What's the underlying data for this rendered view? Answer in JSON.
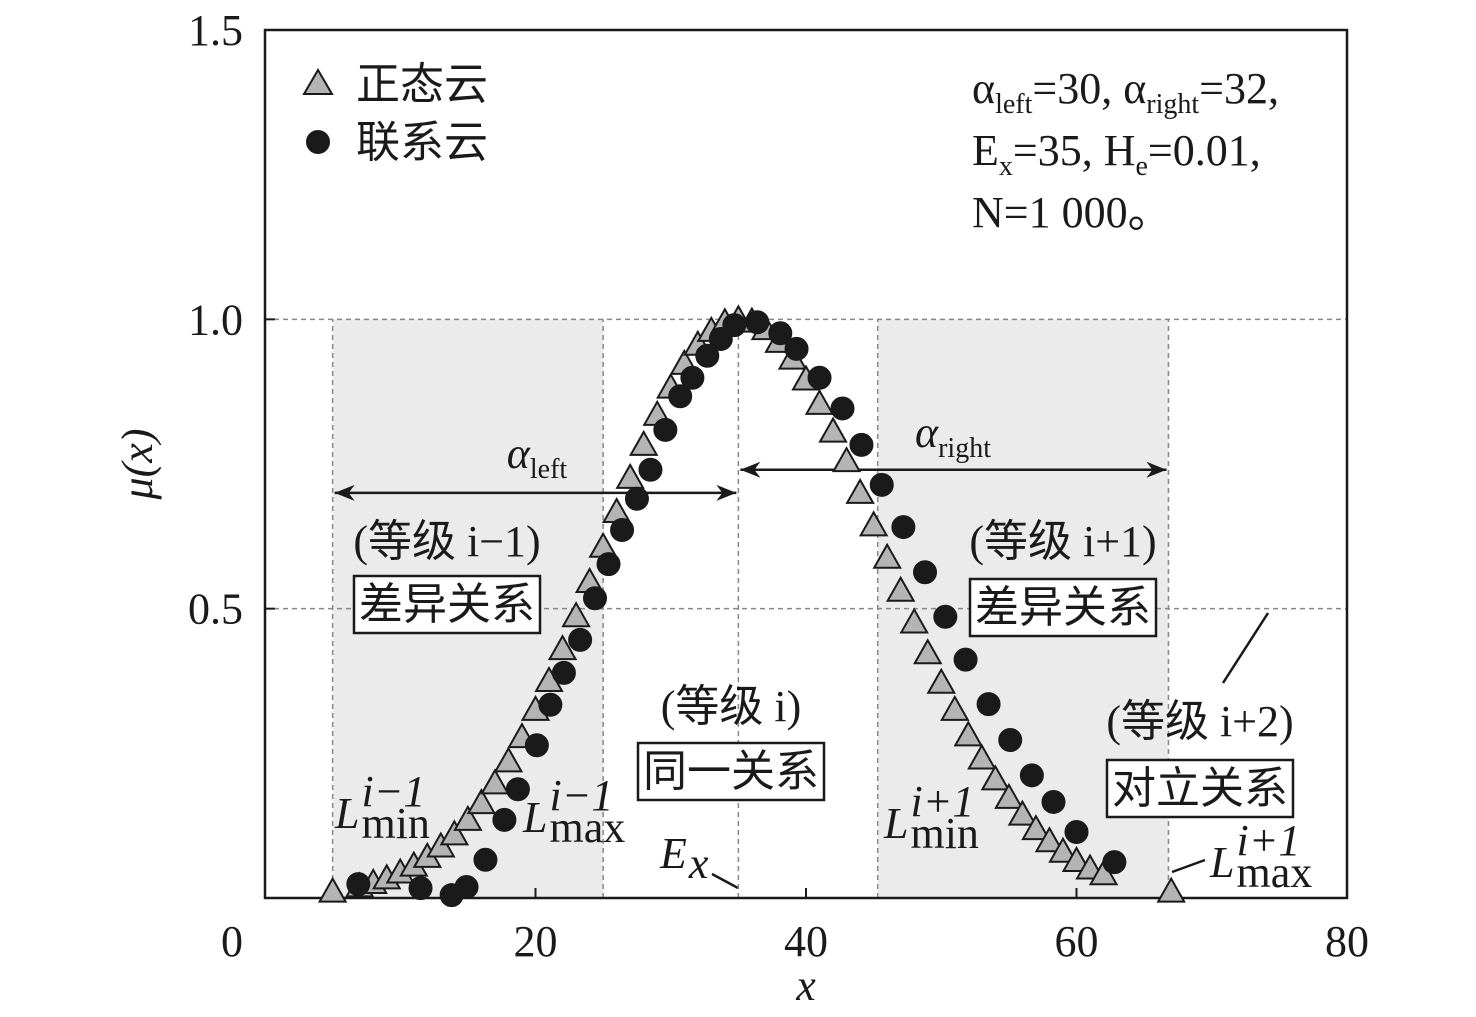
{
  "chart_data": {
    "type": "scatter",
    "x_label": "x",
    "y_label": "μ(x)",
    "xlim": [
      0,
      80
    ],
    "ylim": [
      0,
      1.5
    ],
    "xticks": [
      0,
      20,
      40,
      60,
      80
    ],
    "yticks": [
      0.5,
      {
        "value": 1,
        "label": "1.0"
      },
      1.5
    ],
    "grid": true,
    "legend": "upper left",
    "series": [
      {
        "name": "正态云",
        "marker": "triangle",
        "color": "#b4b4b4",
        "x": [
          5,
          7,
          8,
          9,
          10,
          11,
          12,
          13,
          14,
          15,
          16,
          17,
          18,
          19,
          20,
          21,
          22,
          23,
          24,
          25,
          26,
          27,
          28,
          29,
          30,
          31,
          32,
          33,
          34,
          35,
          36,
          37,
          38,
          39,
          40,
          41,
          42,
          43,
          44,
          45,
          46,
          47,
          48,
          49,
          50,
          51,
          52,
          53,
          54,
          55,
          56,
          57,
          58,
          59,
          60,
          61,
          62,
          67
        ],
        "values": [
          0.011,
          0.02,
          0.026,
          0.034,
          0.044,
          0.056,
          0.071,
          0.089,
          0.11,
          0.135,
          0.164,
          0.198,
          0.236,
          0.278,
          0.325,
          0.375,
          0.43,
          0.487,
          0.546,
          0.607,
          0.667,
          0.726,
          0.783,
          0.835,
          0.882,
          0.923,
          0.956,
          0.98,
          0.995,
          1.0,
          0.996,
          0.983,
          0.961,
          0.932,
          0.896,
          0.854,
          0.806,
          0.755,
          0.7,
          0.644,
          0.588,
          0.531,
          0.476,
          0.423,
          0.372,
          0.325,
          0.281,
          0.241,
          0.205,
          0.173,
          0.144,
          0.119,
          0.098,
          0.08,
          0.064,
          0.051,
          0.041,
          0.011
        ]
      },
      {
        "name": "联系云",
        "marker": "circle",
        "color": "#1a1a1a",
        "x": [
          6.9,
          11.5,
          13.8,
          14.9,
          16.3,
          17.7,
          18.7,
          20.1,
          21.1,
          22.1,
          23.3,
          24.4,
          25.4,
          26.4,
          27.5,
          28.5,
          29.6,
          30.7,
          31.6,
          32.7,
          33.7,
          34.7,
          36.4,
          38.1,
          39.3,
          41.0,
          42.7,
          44.1,
          45.6,
          47.2,
          48.8,
          50.3,
          51.8,
          53.5,
          55.1,
          56.7,
          58.3,
          60.0,
          62.8
        ],
        "values": [
          0.024,
          0.017,
          0.005,
          0.019,
          0.066,
          0.135,
          0.188,
          0.264,
          0.334,
          0.389,
          0.446,
          0.518,
          0.577,
          0.636,
          0.69,
          0.74,
          0.809,
          0.867,
          0.899,
          0.937,
          0.966,
          0.99,
          0.995,
          0.976,
          0.949,
          0.899,
          0.846,
          0.783,
          0.714,
          0.641,
          0.563,
          0.486,
          0.412,
          0.335,
          0.273,
          0.212,
          0.166,
          0.114,
          0.062
        ]
      }
    ],
    "shaded_ranges": [
      [
        5,
        25
      ],
      [
        45.3,
        66.8
      ]
    ],
    "vlines": [
      5,
      25,
      35,
      45.3,
      66.8
    ],
    "vline_top": 1,
    "arrows": [
      {
        "from": 5,
        "to": 35,
        "y": 0.7,
        "label": {
          "base": "α",
          "sub": "left"
        }
      },
      {
        "from": 35,
        "to": 66.8,
        "y": 0.74,
        "label": {
          "base": "α",
          "sub": "right"
        }
      }
    ],
    "bound_labels": [
      {
        "base": "L",
        "sup": "i−1",
        "sub": "min"
      },
      {
        "base": "L",
        "sup": "i−1",
        "sub": "max"
      },
      {
        "base": "E",
        "sub": "x"
      },
      {
        "base": "L",
        "sup": "i+1",
        "sub": "min"
      },
      {
        "base": "L",
        "sup": "i+1",
        "sub": "max"
      }
    ],
    "relations": [
      {
        "grade": "(等级 i−1)",
        "relation": "差异关系"
      },
      {
        "grade": "(等级 i)",
        "relation": "同一关系"
      },
      {
        "grade": "(等级 i+1)",
        "relation": "差异关系"
      },
      {
        "grade": "(等级 i+2)",
        "relation": "对立关系"
      }
    ],
    "params": [
      [
        "α",
        {
          "sub": "left"
        },
        "=30, α",
        {
          "sub": "right"
        },
        "=32,"
      ],
      [
        "E",
        {
          "sub": "x"
        },
        "=35, H",
        {
          "sub": "e"
        },
        "=0.01,"
      ],
      [
        "N=1 000。"
      ]
    ]
  }
}
